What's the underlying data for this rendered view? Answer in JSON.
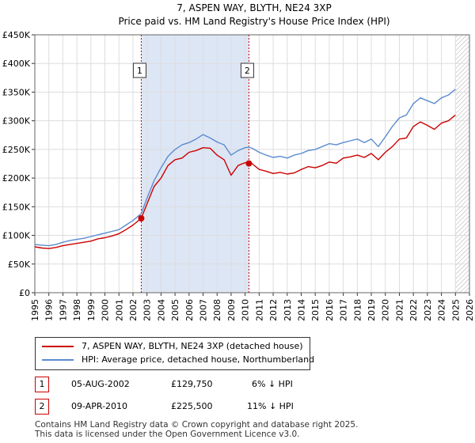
{
  "chart_data": {
    "type": "line",
    "title": "7, ASPEN WAY, BLYTH, NE24 3XP",
    "subtitle": "Price paid vs. HM Land Registry's House Price Index (HPI)",
    "xlabel": "",
    "ylabel": "",
    "xlim": [
      1995,
      2026
    ],
    "ylim": [
      0,
      450000
    ],
    "x_ticks": [
      "1995",
      "1996",
      "1997",
      "1998",
      "1999",
      "2000",
      "2001",
      "2002",
      "2003",
      "2004",
      "2005",
      "2006",
      "2007",
      "2008",
      "2009",
      "2010",
      "2011",
      "2012",
      "2013",
      "2014",
      "2015",
      "2016",
      "2017",
      "2018",
      "2019",
      "2020",
      "2021",
      "2022",
      "2023",
      "2024",
      "2025",
      "2026"
    ],
    "y_ticks": [
      {
        "value": 0,
        "label": "£0"
      },
      {
        "value": 50000,
        "label": "£50K"
      },
      {
        "value": 100000,
        "label": "£100K"
      },
      {
        "value": 150000,
        "label": "£150K"
      },
      {
        "value": 200000,
        "label": "£200K"
      },
      {
        "value": 250000,
        "label": "£250K"
      },
      {
        "value": 300000,
        "label": "£300K"
      },
      {
        "value": 350000,
        "label": "£350K"
      },
      {
        "value": 400000,
        "label": "£400K"
      },
      {
        "value": 450000,
        "label": "£450K"
      }
    ],
    "grid": true,
    "shaded_region": {
      "from": 2002.59,
      "to": 2010.27,
      "color": "#dde6f5"
    },
    "forecast_hatch_from": 2025.0,
    "series": [
      {
        "name": "7, ASPEN WAY, BLYTH, NE24 3XP (detached house)",
        "color": "#cc0000",
        "x": [
          1995.0,
          1995.5,
          1996.0,
          1996.5,
          1997.0,
          1997.5,
          1998.0,
          1998.5,
          1999.0,
          1999.5,
          2000.0,
          2000.5,
          2001.0,
          2001.5,
          2002.0,
          2002.59,
          2003.0,
          2003.5,
          2004.0,
          2004.5,
          2005.0,
          2005.5,
          2006.0,
          2006.5,
          2007.0,
          2007.5,
          2008.0,
          2008.5,
          2009.0,
          2009.5,
          2010.0,
          2010.27,
          2010.5,
          2011.0,
          2011.5,
          2012.0,
          2012.5,
          2013.0,
          2013.5,
          2014.0,
          2014.5,
          2015.0,
          2015.5,
          2016.0,
          2016.5,
          2017.0,
          2017.5,
          2018.0,
          2018.5,
          2019.0,
          2019.5,
          2020.0,
          2020.5,
          2021.0,
          2021.5,
          2022.0,
          2022.5,
          2023.0,
          2023.5,
          2024.0,
          2024.5,
          2025.0
        ],
        "values": [
          80000,
          78000,
          77000,
          79000,
          82000,
          84000,
          86000,
          88000,
          90000,
          94000,
          96000,
          99000,
          103000,
          110000,
          118000,
          129750,
          155000,
          185000,
          200000,
          222000,
          232000,
          235000,
          245000,
          248000,
          253000,
          252000,
          240000,
          232000,
          205000,
          222000,
          227000,
          225500,
          225000,
          215000,
          212000,
          208000,
          210000,
          207000,
          209000,
          215000,
          220000,
          218000,
          222000,
          228000,
          226000,
          235000,
          237000,
          240000,
          236000,
          243000,
          232000,
          245000,
          255000,
          268000,
          270000,
          290000,
          298000,
          292000,
          285000,
          296000,
          300000,
          310000
        ]
      },
      {
        "name": "HPI: Average price, detached house, Northumberland",
        "color": "#5b8bd0",
        "x": [
          1995.0,
          1995.5,
          1996.0,
          1996.5,
          1997.0,
          1997.5,
          1998.0,
          1998.5,
          1999.0,
          1999.5,
          2000.0,
          2000.5,
          2001.0,
          2001.5,
          2002.0,
          2002.59,
          2003.0,
          2003.5,
          2004.0,
          2004.5,
          2005.0,
          2005.5,
          2006.0,
          2006.5,
          2007.0,
          2007.5,
          2008.0,
          2008.5,
          2009.0,
          2009.5,
          2010.0,
          2010.27,
          2010.5,
          2011.0,
          2011.5,
          2012.0,
          2012.5,
          2013.0,
          2013.5,
          2014.0,
          2014.5,
          2015.0,
          2015.5,
          2016.0,
          2016.5,
          2017.0,
          2017.5,
          2018.0,
          2018.5,
          2019.0,
          2019.5,
          2020.0,
          2020.5,
          2021.0,
          2021.5,
          2022.0,
          2022.5,
          2023.0,
          2023.5,
          2024.0,
          2024.5,
          2025.0
        ],
        "values": [
          84000,
          83000,
          82000,
          84000,
          88000,
          91000,
          93000,
          95000,
          98000,
          101000,
          104000,
          107000,
          110000,
          118000,
          126000,
          138000,
          165000,
          195000,
          218000,
          238000,
          250000,
          258000,
          262000,
          268000,
          276000,
          270000,
          263000,
          258000,
          240000,
          248000,
          253000,
          254000,
          252000,
          245000,
          240000,
          236000,
          238000,
          235000,
          240000,
          243000,
          248000,
          250000,
          255000,
          260000,
          258000,
          262000,
          265000,
          268000,
          262000,
          268000,
          255000,
          272000,
          290000,
          305000,
          310000,
          330000,
          340000,
          335000,
          330000,
          340000,
          345000,
          355000
        ]
      }
    ],
    "annotations": [
      {
        "label": "1",
        "x": 2002.59,
        "y": 129750
      },
      {
        "label": "2",
        "x": 2010.27,
        "y": 225500
      }
    ]
  },
  "legend": {
    "items": [
      {
        "label": "7, ASPEN WAY, BLYTH, NE24 3XP (detached house)",
        "color": "#cc0000"
      },
      {
        "label": "HPI: Average price, detached house, Northumberland",
        "color": "#5b8bd0"
      }
    ]
  },
  "transactions": [
    {
      "id": "1",
      "date": "05-AUG-2002",
      "price": "£129,750",
      "hpi": "6% ↓ HPI"
    },
    {
      "id": "2",
      "date": "09-APR-2010",
      "price": "£225,500",
      "hpi": "11% ↓ HPI"
    }
  ],
  "footer": {
    "line1": "Contains HM Land Registry data © Crown copyright and database right 2025.",
    "line2": "This data is licensed under the Open Government Licence v3.0."
  }
}
